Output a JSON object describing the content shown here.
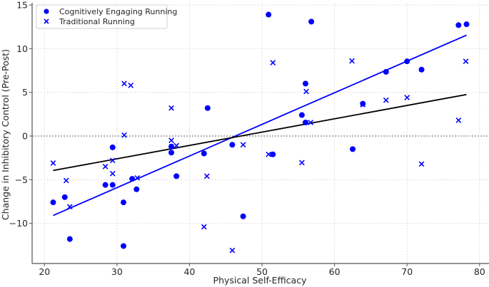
{
  "chart_data": {
    "type": "scatter",
    "title": "",
    "xlabel": "Physical Self-Efficacy",
    "ylabel": "Change in Inhibitory Control (Pre-Post)",
    "xlim": [
      18.3,
      81.3
    ],
    "ylim": [
      -14.6,
      15.25
    ],
    "xticks": [
      20,
      30,
      40,
      50,
      60,
      70,
      80
    ],
    "yticks": [
      -10,
      -5,
      0,
      5,
      10,
      15
    ],
    "ytick_labels": [
      "−10",
      "−5",
      "0",
      "5",
      "10",
      "15"
    ],
    "grid": true,
    "zero_line": {
      "y": 0,
      "style": "dotted",
      "color": "#808080"
    },
    "legend": {
      "position": "upper left",
      "entries": [
        {
          "label": "Cognitively Engaging Running",
          "marker": "circle",
          "color": "#0000ff"
        },
        {
          "label": "Traditional Running",
          "marker": "x",
          "color": "#0000ff"
        }
      ]
    },
    "series": [
      {
        "name": "Cognitively Engaging Running",
        "marker": "circle",
        "color": "#0000ff",
        "points": [
          [
            21.2,
            -7.6
          ],
          [
            22.8,
            -7.0
          ],
          [
            23.5,
            -11.8
          ],
          [
            28.4,
            -5.6
          ],
          [
            29.4,
            -5.6
          ],
          [
            29.4,
            -1.3
          ],
          [
            30.9,
            -7.6
          ],
          [
            30.9,
            -12.6
          ],
          [
            32.1,
            -4.9
          ],
          [
            32.7,
            -6.1
          ],
          [
            37.5,
            -1.2
          ],
          [
            37.5,
            -1.9
          ],
          [
            38.2,
            -4.6
          ],
          [
            42.0,
            -2.0
          ],
          [
            42.5,
            3.2
          ],
          [
            45.9,
            -1.0
          ],
          [
            47.4,
            -9.2
          ],
          [
            50.9,
            13.9
          ],
          [
            51.5,
            -2.1
          ],
          [
            55.5,
            2.4
          ],
          [
            56.0,
            1.55
          ],
          [
            56.0,
            6.0
          ],
          [
            56.8,
            13.1
          ],
          [
            62.5,
            -1.5
          ],
          [
            63.9,
            3.7
          ],
          [
            67.1,
            7.35
          ],
          [
            70.0,
            8.55
          ],
          [
            72.0,
            7.6
          ],
          [
            77.1,
            12.7
          ],
          [
            78.2,
            12.8
          ]
        ]
      },
      {
        "name": "Traditional Running",
        "marker": "x",
        "color": "#0000ff",
        "points": [
          [
            21.2,
            -3.1
          ],
          [
            23.0,
            -5.1
          ],
          [
            23.5,
            -8.1
          ],
          [
            28.4,
            -3.5
          ],
          [
            29.4,
            -2.8
          ],
          [
            29.4,
            -4.3
          ],
          [
            31.0,
            0.1
          ],
          [
            31.0,
            6.0
          ],
          [
            31.9,
            5.8
          ],
          [
            32.8,
            -4.8
          ],
          [
            37.5,
            3.2
          ],
          [
            37.5,
            -0.5
          ],
          [
            38.2,
            -1.1
          ],
          [
            42.0,
            -10.4
          ],
          [
            42.4,
            -4.6
          ],
          [
            45.9,
            -13.1
          ],
          [
            47.4,
            -1.0
          ],
          [
            50.9,
            -2.1
          ],
          [
            51.5,
            8.4
          ],
          [
            55.5,
            -3.05
          ],
          [
            56.1,
            5.1
          ],
          [
            56.7,
            1.55
          ],
          [
            62.4,
            8.6
          ],
          [
            63.9,
            3.6
          ],
          [
            67.1,
            4.1
          ],
          [
            70.0,
            4.4
          ],
          [
            72.0,
            -3.2
          ],
          [
            77.1,
            1.8
          ],
          [
            78.1,
            8.55
          ]
        ]
      }
    ],
    "trend_lines": [
      {
        "name": "Cognitively Engaging Running fit",
        "color": "#0000ff",
        "from": [
          21.2,
          -9.1
        ],
        "to": [
          78.2,
          11.55
        ]
      },
      {
        "name": "Traditional Running fit",
        "color": "#000000",
        "from": [
          21.2,
          -3.95
        ],
        "to": [
          78.2,
          4.75
        ]
      }
    ]
  }
}
